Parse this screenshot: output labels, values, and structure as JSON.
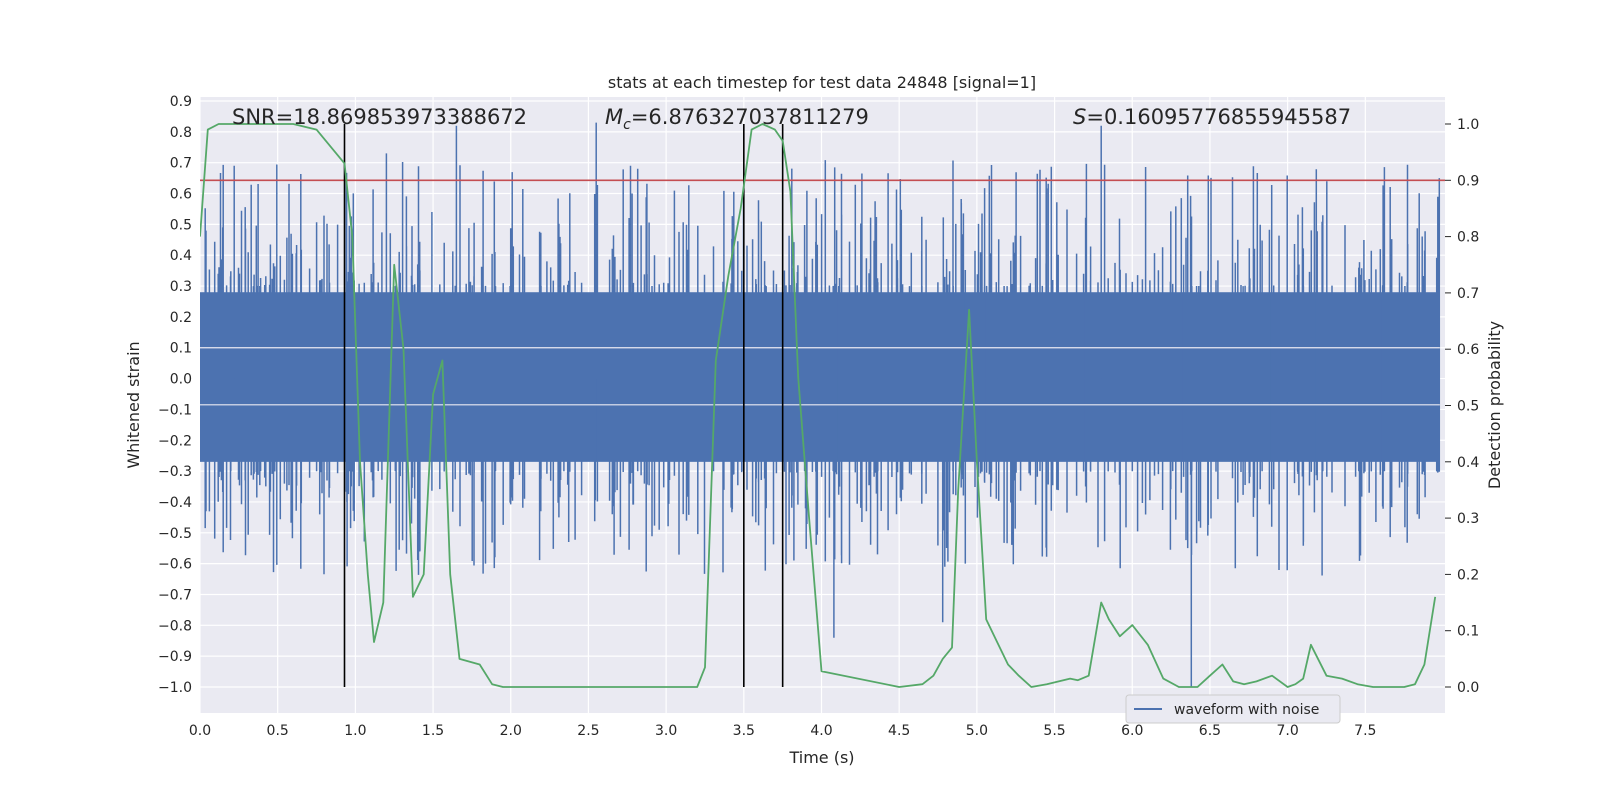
{
  "chart_data": {
    "type": "line",
    "title": "stats at each timestep for test data 24848 [signal=1]",
    "xlabel": "Time (s)",
    "ylabel": "Whitened strain",
    "y2label": "Detection probability",
    "xlim": [
      0.0,
      8.0
    ],
    "ylim": [
      -1.0,
      0.9
    ],
    "y2lim": [
      0.0,
      1.0
    ],
    "x_ticks": [
      "0.0",
      "0.5",
      "1.0",
      "1.5",
      "2.0",
      "2.5",
      "3.0",
      "3.5",
      "4.0",
      "4.5",
      "5.0",
      "5.5",
      "6.0",
      "6.5",
      "7.0",
      "7.5"
    ],
    "y_ticks": [
      "0.9",
      "0.8",
      "0.7",
      "0.6",
      "0.5",
      "0.4",
      "0.3",
      "0.2",
      "0.1",
      "0.0",
      "−0.1",
      "−0.2",
      "−0.3",
      "−0.4",
      "−0.5",
      "−0.6",
      "−0.7",
      "−0.8",
      "−0.9",
      "−1.0"
    ],
    "y2_ticks": [
      "1.0",
      "0.9",
      "0.8",
      "0.7",
      "0.6",
      "0.5",
      "0.4",
      "0.3",
      "0.2",
      "0.1",
      "0.0"
    ],
    "grid": true,
    "annotations": {
      "snr": "SNR=18.869853973388672",
      "mc_prefix": "M",
      "mc_sub": "c",
      "mc_value": "=6.876327037811279",
      "s_prefix": "S",
      "s_value": "=0.16095776855945587"
    },
    "legend": {
      "label": "waveform with noise",
      "position": "lower-right"
    },
    "threshold": {
      "value": 0.9,
      "axis": "right",
      "color": "#c44e52"
    },
    "vertical_lines": [
      0.93,
      3.5,
      3.75
    ],
    "waveform": {
      "name": "waveform with noise",
      "color": "#4c72b0",
      "band_low": -0.27,
      "band_high": 0.28,
      "seed": 24848,
      "n_spikes": 420
    },
    "probability": {
      "name": "detection probability",
      "color": "#55a868",
      "x": [
        0.0,
        0.05,
        0.12,
        0.25,
        0.45,
        0.6,
        0.75,
        0.93,
        0.98,
        1.03,
        1.08,
        1.12,
        1.18,
        1.25,
        1.31,
        1.37,
        1.44,
        1.5,
        1.56,
        1.61,
        1.67,
        1.8,
        1.88,
        1.95,
        2.2,
        2.6,
        3.0,
        3.2,
        3.25,
        3.32,
        3.4,
        3.48,
        3.55,
        3.62,
        3.7,
        3.75,
        3.8,
        3.85,
        3.92,
        4.0,
        4.5,
        4.65,
        4.72,
        4.78,
        4.84,
        4.88,
        4.95,
        5.0,
        5.06,
        5.13,
        5.2,
        5.27,
        5.35,
        5.45,
        5.6,
        5.65,
        5.72,
        5.8,
        5.85,
        5.92,
        6.0,
        6.1,
        6.2,
        6.3,
        6.42,
        6.5,
        6.58,
        6.65,
        6.72,
        6.8,
        6.9,
        7.0,
        7.05,
        7.1,
        7.15,
        7.25,
        7.35,
        7.45,
        7.55,
        7.65,
        7.75,
        7.82,
        7.88,
        7.95
      ],
      "y": [
        0.8,
        0.99,
        1.0,
        1.0,
        1.0,
        1.0,
        0.99,
        0.93,
        0.8,
        0.4,
        0.2,
        0.08,
        0.15,
        0.75,
        0.6,
        0.16,
        0.2,
        0.52,
        0.58,
        0.2,
        0.05,
        0.04,
        0.005,
        0.0,
        0.0,
        0.0,
        0.0,
        0.0,
        0.035,
        0.58,
        0.73,
        0.85,
        0.99,
        1.0,
        0.99,
        0.97,
        0.88,
        0.55,
        0.3,
        0.028,
        0.0,
        0.005,
        0.02,
        0.05,
        0.07,
        0.35,
        0.67,
        0.4,
        0.12,
        0.08,
        0.04,
        0.02,
        0.0,
        0.005,
        0.015,
        0.012,
        0.02,
        0.15,
        0.12,
        0.09,
        0.11,
        0.075,
        0.015,
        0.0,
        0.0,
        0.02,
        0.04,
        0.01,
        0.005,
        0.01,
        0.02,
        0.0,
        0.005,
        0.015,
        0.075,
        0.02,
        0.015,
        0.005,
        0.0,
        0.0,
        0.0,
        0.005,
        0.04,
        0.16
      ]
    }
  }
}
